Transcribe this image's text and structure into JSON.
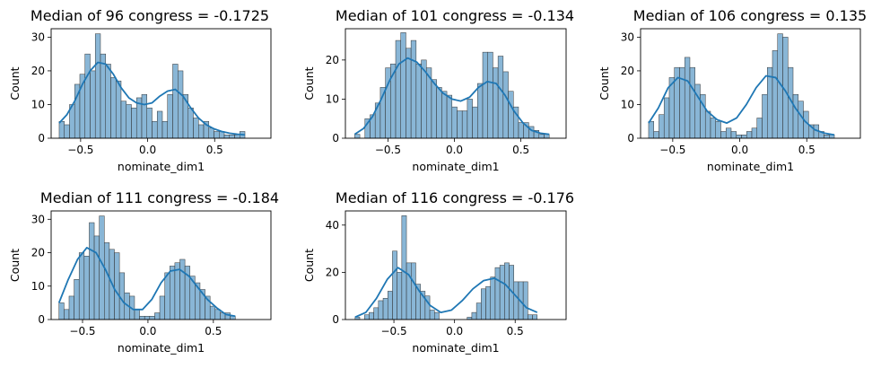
{
  "chart_data": [
    {
      "type": "histogram",
      "title": "Median of 96 congress = -0.1725",
      "xlabel": "nominate_dim1",
      "ylabel": "Count",
      "xlim": [
        -0.72,
        0.92
      ],
      "ylim": [
        0,
        32.5
      ],
      "xticks": [
        "-0.5",
        "0.0",
        "0.5"
      ],
      "yticks": [
        "0",
        "10",
        "20",
        "30"
      ],
      "bin_start": -0.66,
      "bin_width": 0.0385,
      "counts": [
        5,
        4,
        10,
        16,
        19,
        25,
        20,
        31,
        25,
        22,
        18,
        17,
        11,
        10,
        9,
        12,
        13,
        9,
        5,
        8,
        5,
        13,
        22,
        20,
        13,
        9,
        6,
        4,
        5,
        3,
        2,
        2,
        1,
        1,
        1,
        2
      ],
      "kde": [
        4.5,
        7,
        11,
        16,
        20,
        22.5,
        22,
        19,
        15,
        12,
        10.5,
        10,
        10.5,
        12.5,
        14,
        14.5,
        12.5,
        9,
        6,
        4,
        2.8,
        2,
        1.5,
        1.2,
        1
      ],
      "bar_color": "#74a9cf",
      "line_color": "#1f77b4"
    },
    {
      "type": "histogram",
      "title": "Median of 101 congress = -0.134",
      "xlabel": "nominate_dim1",
      "ylabel": "Count",
      "xlim": [
        -0.82,
        0.84
      ],
      "ylim": [
        0,
        28
      ],
      "xticks": [
        "-0.5",
        "0.0",
        "0.5"
      ],
      "yticks": [
        "0",
        "10",
        "20"
      ],
      "bin_start": -0.75,
      "bin_width": 0.0385,
      "counts": [
        1,
        0,
        5,
        6,
        9,
        13,
        18,
        19,
        25,
        27,
        23,
        25,
        19,
        20,
        18,
        15,
        13,
        12,
        11,
        8,
        7,
        7,
        10,
        8,
        14,
        22,
        22,
        18,
        21,
        17,
        12,
        8,
        4,
        4,
        3,
        2,
        1,
        1
      ],
      "kde": [
        1,
        2.5,
        5.5,
        10,
        15,
        19,
        20.5,
        19.5,
        17,
        14,
        11.5,
        10,
        9.5,
        10.5,
        13,
        14.5,
        14,
        11,
        7,
        4,
        2,
        1.3,
        1
      ],
      "bar_color": "#74a9cf",
      "line_color": "#1f77b4"
    },
    {
      "type": "histogram",
      "title": "Median of 106 congress = 0.135",
      "xlabel": "nominate_dim1",
      "ylabel": "Count",
      "xlim": [
        -0.74,
        0.9
      ],
      "ylim": [
        0,
        32.5
      ],
      "xticks": [
        "-0.5",
        "0.0",
        "0.5"
      ],
      "yticks": [
        "0",
        "10",
        "20",
        "30"
      ],
      "bin_start": -0.68,
      "bin_width": 0.0385,
      "counts": [
        5,
        2,
        7,
        12,
        18,
        21,
        21,
        24,
        21,
        16,
        13,
        8,
        6,
        5,
        2,
        3,
        2,
        1,
        1,
        2,
        3,
        6,
        13,
        21,
        26,
        31,
        30,
        21,
        13,
        11,
        8,
        4,
        4,
        2,
        1,
        1
      ],
      "kde": [
        4.5,
        9,
        15,
        18,
        17,
        12.5,
        8,
        5.5,
        4.5,
        6,
        10,
        15,
        18.5,
        18,
        14,
        9,
        5,
        2.5,
        1.5,
        1
      ],
      "bar_color": "#74a9cf",
      "line_color": "#1f77b4"
    },
    {
      "type": "histogram",
      "title": "Median of 111 congress = -0.184",
      "xlabel": "nominate_dim1",
      "ylabel": "Count",
      "xlim": [
        -0.74,
        0.94
      ],
      "ylim": [
        0,
        32.5
      ],
      "xticks": [
        "-0.5",
        "0.0",
        "0.5"
      ],
      "yticks": [
        "0",
        "10",
        "20",
        "30"
      ],
      "bin_start": -0.68,
      "bin_width": 0.0385,
      "counts": [
        5,
        3,
        7,
        12,
        20,
        19,
        29,
        25,
        31,
        23,
        21,
        20,
        14,
        8,
        7,
        3,
        1,
        1,
        1,
        2,
        7,
        14,
        16,
        17,
        18,
        16,
        13,
        11,
        9,
        7,
        4,
        3,
        2,
        2,
        1
      ],
      "kde": [
        5,
        12,
        18,
        21.5,
        20,
        15,
        9,
        5,
        3,
        3,
        6,
        11,
        14.5,
        15,
        13,
        9.5,
        6,
        3.5,
        1.5,
        1
      ],
      "bar_color": "#74a9cf",
      "line_color": "#1f77b4"
    },
    {
      "type": "histogram",
      "title": "Median of 116 congress = -0.176",
      "xlabel": "nominate_dim1",
      "ylabel": "Count",
      "xlim": [
        -0.9,
        0.92
      ],
      "ylim": [
        0,
        46
      ],
      "xticks": [
        "-0.5",
        "0.0",
        "0.5"
      ],
      "yticks": [
        "0",
        "20",
        "40"
      ],
      "bin_start": -0.82,
      "bin_width": 0.0385,
      "counts": [
        1,
        0,
        2,
        3,
        5,
        8,
        9,
        12,
        29,
        20,
        44,
        24,
        24,
        15,
        12,
        10,
        4,
        3,
        0,
        0,
        0,
        0,
        0,
        0,
        1,
        3,
        7,
        13,
        14,
        18,
        22,
        23,
        24,
        23,
        16,
        16,
        16,
        2,
        2
      ],
      "kde": [
        1,
        3,
        9,
        17,
        22,
        19,
        12,
        6,
        3,
        4,
        8,
        13,
        16.5,
        17.5,
        15,
        10,
        5,
        3
      ],
      "bar_color": "#74a9cf",
      "line_color": "#1f77b4"
    }
  ]
}
